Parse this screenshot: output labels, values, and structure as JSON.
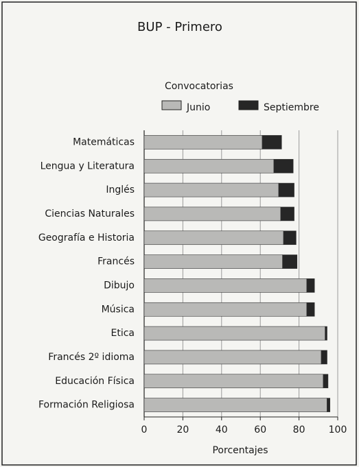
{
  "chart_data": {
    "type": "stacked_barh",
    "title": "BUP - Primero",
    "legend_title": "Convocatorias",
    "categories": [
      "Matemáticas",
      "Lengua y Literatura",
      "Inglés",
      "Ciencias Naturales",
      "Geografía e Historia",
      "Francés",
      "Dibujo",
      "Música",
      "Etica",
      "Francés 2º idioma",
      "Educación Física",
      "Formación Religiosa"
    ],
    "series": [
      {
        "name": "Junio",
        "color": "#b9b9b7",
        "values": [
          61,
          67,
          69.5,
          70.5,
          72,
          71.5,
          84,
          84,
          93.5,
          91.5,
          92.5,
          94.5
        ]
      },
      {
        "name": "Septiembre",
        "color": "#262626",
        "values": [
          10,
          10,
          8,
          7,
          6.5,
          7.5,
          4,
          4,
          1,
          3,
          2.5,
          1.5
        ]
      }
    ],
    "xlabel": "Porcentajes",
    "xlim": [
      0,
      100
    ],
    "xticks": [
      0,
      20,
      40,
      60,
      80,
      100
    ],
    "grid": true
  }
}
